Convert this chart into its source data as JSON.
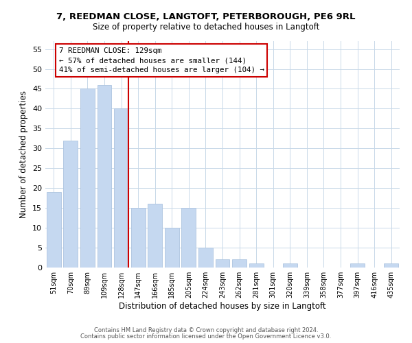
{
  "title": "7, REEDMAN CLOSE, LANGTOFT, PETERBOROUGH, PE6 9RL",
  "subtitle": "Size of property relative to detached houses in Langtoft",
  "xlabel": "Distribution of detached houses by size in Langtoft",
  "ylabel": "Number of detached properties",
  "bar_labels": [
    "51sqm",
    "70sqm",
    "89sqm",
    "109sqm",
    "128sqm",
    "147sqm",
    "166sqm",
    "185sqm",
    "205sqm",
    "224sqm",
    "243sqm",
    "262sqm",
    "281sqm",
    "301sqm",
    "320sqm",
    "339sqm",
    "358sqm",
    "377sqm",
    "397sqm",
    "416sqm",
    "435sqm"
  ],
  "bar_heights": [
    19,
    32,
    45,
    46,
    40,
    15,
    16,
    10,
    15,
    5,
    2,
    2,
    1,
    0,
    1,
    0,
    0,
    0,
    1,
    0,
    1
  ],
  "bar_color": "#c5d8f0",
  "bar_edge_color": "#adc4e0",
  "vline_x_index": 4,
  "vline_color": "#cc0000",
  "annotation_title": "7 REEDMAN CLOSE: 129sqm",
  "annotation_line1": "← 57% of detached houses are smaller (144)",
  "annotation_line2": "41% of semi-detached houses are larger (104) →",
  "annotation_box_color": "#ffffff",
  "annotation_box_edge": "#cc0000",
  "ylim": [
    0,
    57
  ],
  "yticks": [
    0,
    5,
    10,
    15,
    20,
    25,
    30,
    35,
    40,
    45,
    50,
    55
  ],
  "footer1": "Contains HM Land Registry data © Crown copyright and database right 2024.",
  "footer2": "Contains public sector information licensed under the Open Government Licence v3.0.",
  "bg_color": "#ffffff",
  "grid_color": "#c8d8e8"
}
